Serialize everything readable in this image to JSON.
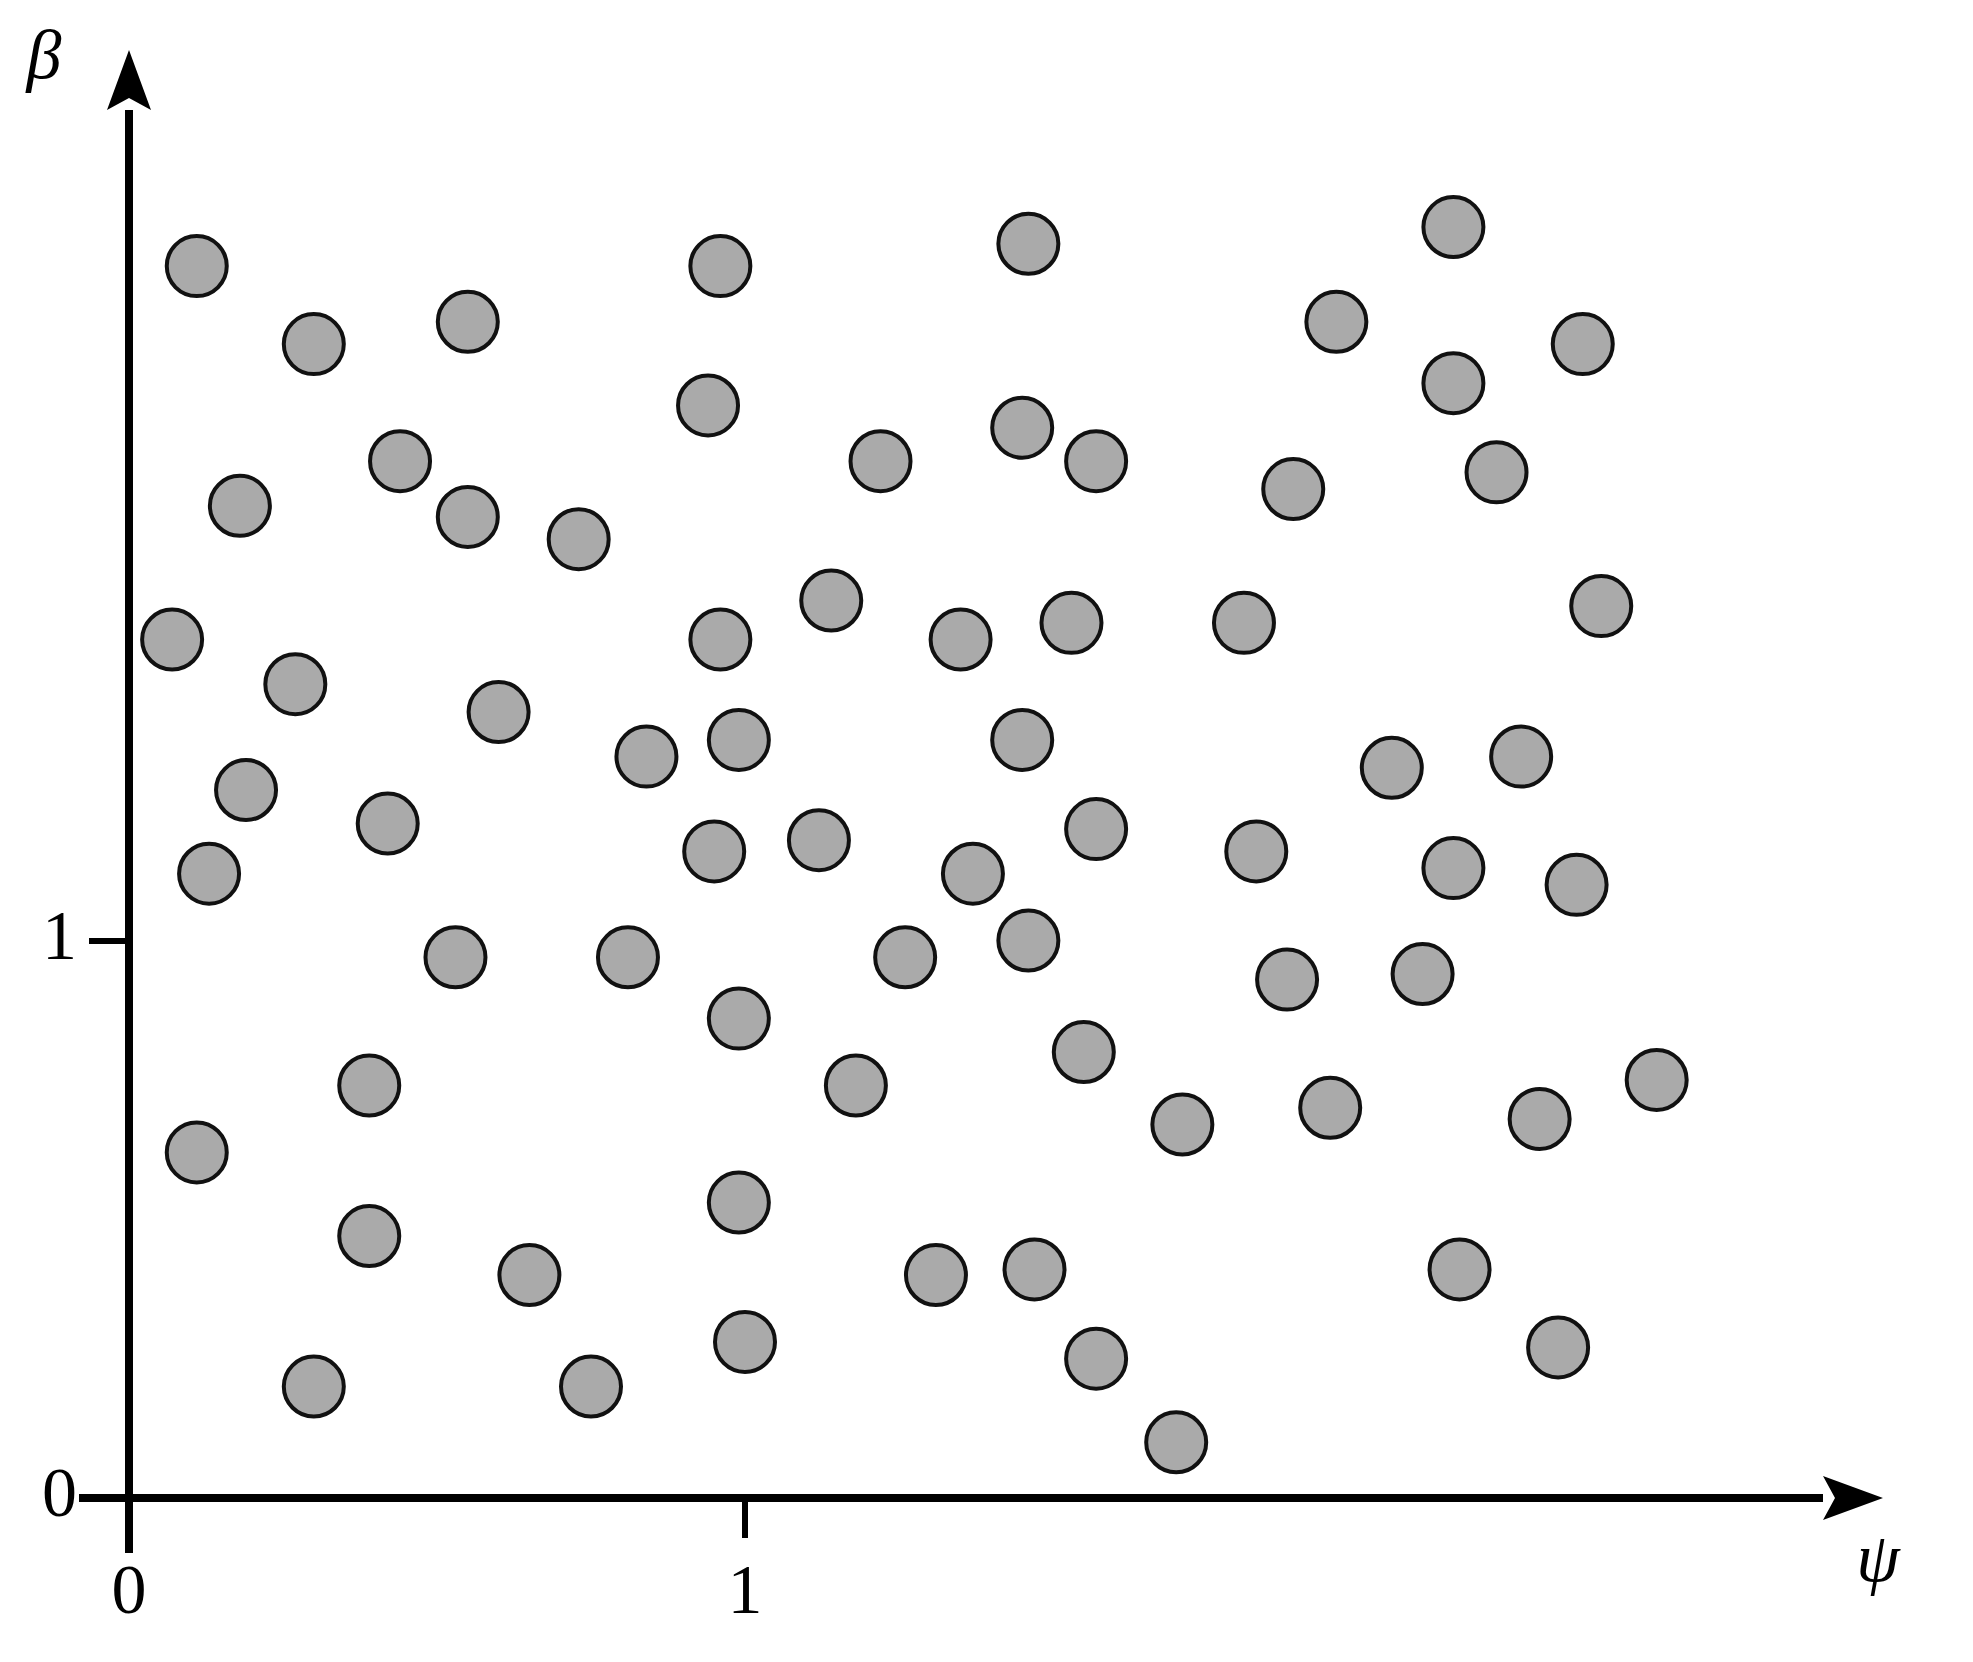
{
  "chart_data": {
    "type": "scatter",
    "xlabel": "ψ",
    "ylabel": "β",
    "x": [
      0.11,
      0.3,
      0.55,
      0.96,
      1.46,
      2.15,
      1.96,
      2.36,
      2.15,
      0.94,
      1.45,
      0.44,
      1.22,
      1.57,
      2.22,
      1.89,
      0.18,
      0.55,
      0.73,
      1.14,
      2.39,
      0.07,
      0.96,
      1.35,
      1.53,
      1.81,
      0.27,
      0.6,
      0.99,
      0.84,
      1.45,
      2.05,
      2.26,
      0.19,
      0.42,
      1.12,
      0.95,
      1.57,
      1.83,
      0.13,
      1.37,
      2.15,
      2.35,
      0.53,
      0.81,
      1.26,
      1.46,
      1.88,
      2.1,
      0.99,
      1.55,
      0.39,
      1.18,
      2.48,
      1.95,
      2.29,
      1.71,
      0.11,
      0.99,
      0.39,
      0.65,
      1.31,
      1.47,
      2.16,
      1.0,
      2.32,
      0.3,
      0.75,
      1.57,
      1.7
    ],
    "values": [
      2.21,
      2.07,
      2.11,
      2.21,
      2.25,
      2.28,
      2.11,
      2.07,
      2.0,
      1.96,
      1.92,
      1.86,
      1.86,
      1.86,
      1.84,
      1.81,
      1.78,
      1.76,
      1.72,
      1.61,
      1.6,
      1.54,
      1.54,
      1.54,
      1.57,
      1.57,
      1.46,
      1.41,
      1.36,
      1.33,
      1.36,
      1.31,
      1.33,
      1.27,
      1.21,
      1.18,
      1.16,
      1.2,
      1.16,
      1.12,
      1.12,
      1.13,
      1.1,
      0.97,
      0.97,
      0.97,
      1.0,
      0.93,
      0.94,
      0.86,
      0.8,
      0.74,
      0.74,
      0.75,
      0.7,
      0.68,
      0.67,
      0.62,
      0.53,
      0.47,
      0.4,
      0.4,
      0.41,
      0.41,
      0.28,
      0.27,
      0.2,
      0.2,
      0.25,
      0.1
    ],
    "color": "#aaaaaa",
    "marker": "circle",
    "grid": false,
    "legend": false,
    "xlim": [
      0,
      2.75
    ],
    "ylim": [
      0,
      2.49
    ],
    "xticks": [
      0,
      1
    ],
    "yticks": [
      0,
      1
    ]
  }
}
